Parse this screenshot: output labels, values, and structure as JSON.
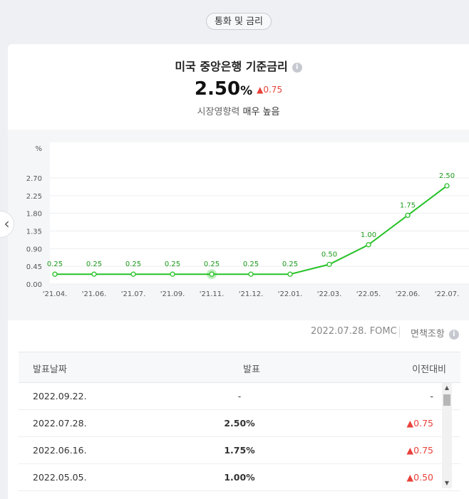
{
  "chip_label": "통화 및 금리",
  "title": "미국 중앙은행 기준금리",
  "info_icon": "i",
  "rate": {
    "value": "2.50",
    "unit": "%",
    "change": "▲0.75"
  },
  "impact": {
    "label": "시장영향력",
    "level": "매우 높음"
  },
  "chart_data": {
    "type": "line",
    "ylabel": "%",
    "yticks": [
      "2.70",
      "2.25",
      "1.80",
      "1.35",
      "0.90",
      "0.45",
      "0.00"
    ],
    "ylim": [
      0,
      2.7
    ],
    "categories": [
      "'21.04.",
      "'21.06.",
      "'21.07.",
      "'21.09.",
      "'21.11.",
      "'21.12.",
      "'22.01.",
      "'22.03.",
      "'22.05.",
      "'22.06.",
      "'22.07."
    ],
    "values": [
      0.25,
      0.25,
      0.25,
      0.25,
      0.25,
      0.25,
      0.25,
      0.5,
      1.0,
      1.75,
      2.5
    ],
    "labels": [
      "0.25",
      "0.25",
      "0.25",
      "0.25",
      "0.25",
      "0.25",
      "0.25",
      "0.50",
      "1.00",
      "1.75",
      "2.50"
    ],
    "highlight_index": 4,
    "color": "#27c127"
  },
  "meta": {
    "date_source": "2022.07.28. FOMC",
    "disclaimer": "면책조항"
  },
  "table": {
    "headers": {
      "date": "발표날짜",
      "value": "발표",
      "change": "이전대비"
    },
    "rows": [
      {
        "date": "2022.09.22.",
        "value": "-",
        "change": "-"
      },
      {
        "date": "2022.07.28.",
        "value": "2.50%",
        "change": "▲0.75"
      },
      {
        "date": "2022.06.16.",
        "value": "1.75%",
        "change": "▲0.75"
      },
      {
        "date": "2022.05.05.",
        "value": "1.00%",
        "change": "▲0.50"
      }
    ]
  }
}
